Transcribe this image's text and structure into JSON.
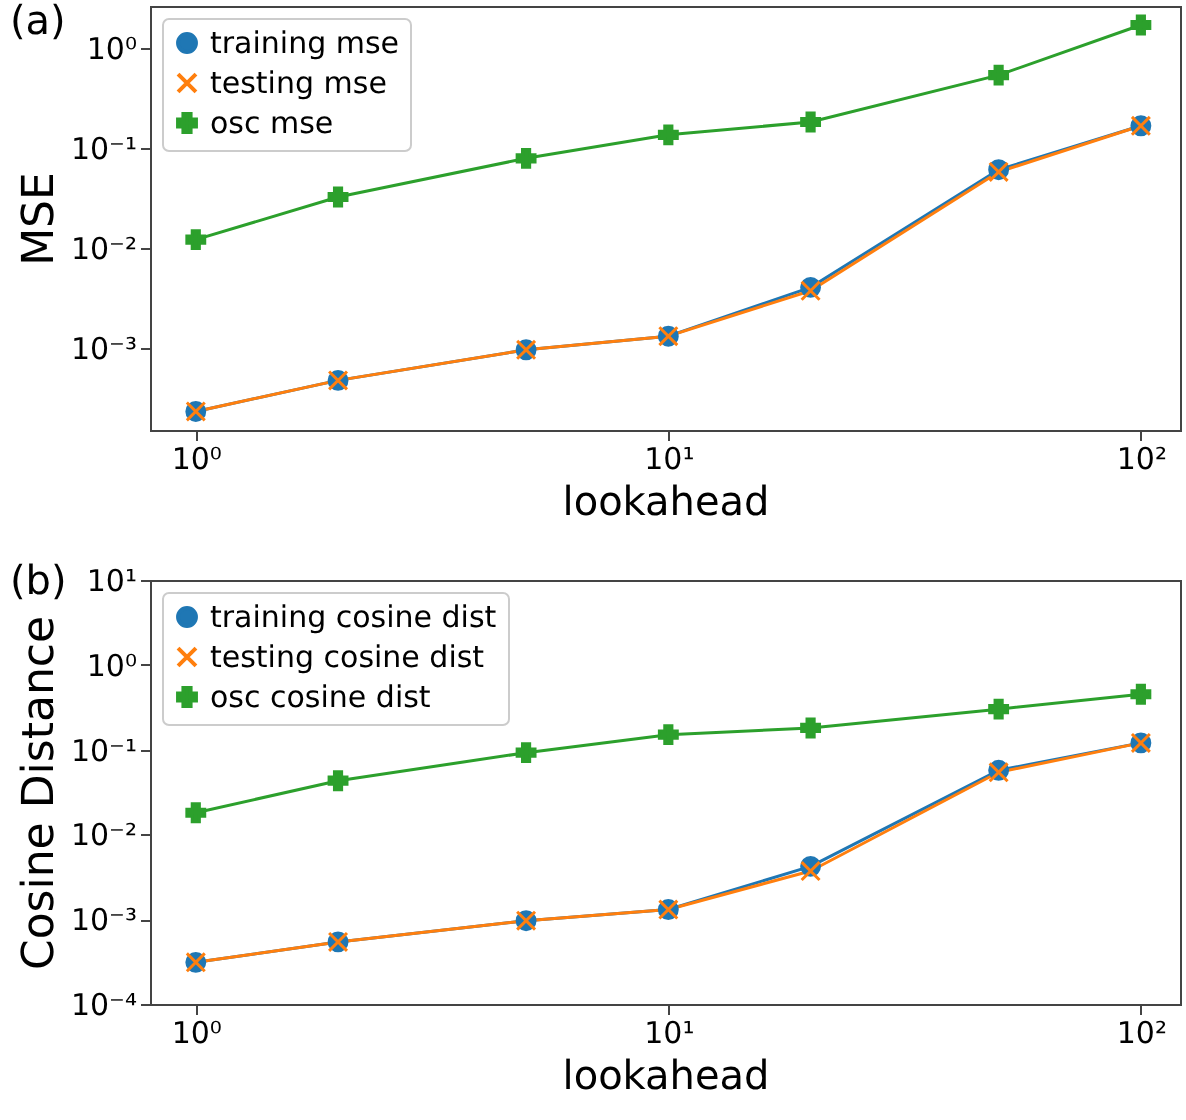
{
  "chart_data": [
    {
      "type": "line",
      "title": "(a)",
      "xlabel": "lookahead",
      "ylabel": "MSE",
      "log": "xy",
      "grid": false,
      "legend": "top left",
      "x": [
        1,
        2,
        5,
        10,
        20,
        50,
        100
      ],
      "xlim": [
        0.8,
        121
      ],
      "xticks": [
        {
          "value": 1,
          "label": "10⁰"
        },
        {
          "value": 10,
          "label": "10¹"
        },
        {
          "value": 100,
          "label": "10²"
        }
      ],
      "ylim": [
        0.00015,
        2.6
      ],
      "yticks": [
        {
          "value": 0.001,
          "label": "10⁻³"
        },
        {
          "value": 0.01,
          "label": "10⁻²"
        },
        {
          "value": 0.1,
          "label": "10⁻¹"
        },
        {
          "value": 1,
          "label": "10⁰"
        }
      ],
      "series": [
        {
          "name": "training mse",
          "color": "#1f77b4",
          "marker": "circle",
          "values": [
            0.00023,
            0.00047,
            0.00095,
            0.0013,
            0.004,
            0.06,
            0.165
          ]
        },
        {
          "name": "testing mse",
          "color": "#ff7f0e",
          "marker": "x",
          "values": [
            0.00023,
            0.00047,
            0.00095,
            0.0013,
            0.0037,
            0.057,
            0.165
          ]
        },
        {
          "name": "osc mse",
          "color": "#2ca02c",
          "marker": "cross",
          "values": [
            0.012,
            0.032,
            0.078,
            0.134,
            0.18,
            0.53,
            1.68
          ]
        }
      ]
    },
    {
      "type": "line",
      "title": "(b)",
      "xlabel": "lookahead",
      "ylabel": "Cosine Distance",
      "log": "xy",
      "grid": false,
      "legend": "top left",
      "x": [
        1,
        2,
        5,
        10,
        20,
        50,
        100
      ],
      "xlim": [
        0.8,
        121
      ],
      "xticks": [
        {
          "value": 1,
          "label": "10⁰"
        },
        {
          "value": 10,
          "label": "10¹"
        },
        {
          "value": 100,
          "label": "10²"
        }
      ],
      "ylim": [
        0.0001,
        10
      ],
      "yticks": [
        {
          "value": 0.0001,
          "label": "10⁻⁴"
        },
        {
          "value": 0.001,
          "label": "10⁻³"
        },
        {
          "value": 0.01,
          "label": "10⁻²"
        },
        {
          "value": 0.1,
          "label": "10⁻¹"
        },
        {
          "value": 1,
          "label": "10⁰"
        },
        {
          "value": 10,
          "label": "10¹"
        }
      ],
      "series": [
        {
          "name": "training cosine dist",
          "color": "#1f77b4",
          "marker": "circle",
          "values": [
            0.00031,
            0.00054,
            0.00096,
            0.0013,
            0.0042,
            0.057,
            0.12
          ]
        },
        {
          "name": "testing cosine dist",
          "color": "#ff7f0e",
          "marker": "x",
          "values": [
            0.00031,
            0.00054,
            0.00096,
            0.0013,
            0.0037,
            0.054,
            0.12
          ]
        },
        {
          "name": "osc cosine dist",
          "color": "#2ca02c",
          "marker": "cross",
          "values": [
            0.018,
            0.043,
            0.092,
            0.15,
            0.18,
            0.3,
            0.45
          ]
        }
      ]
    }
  ]
}
